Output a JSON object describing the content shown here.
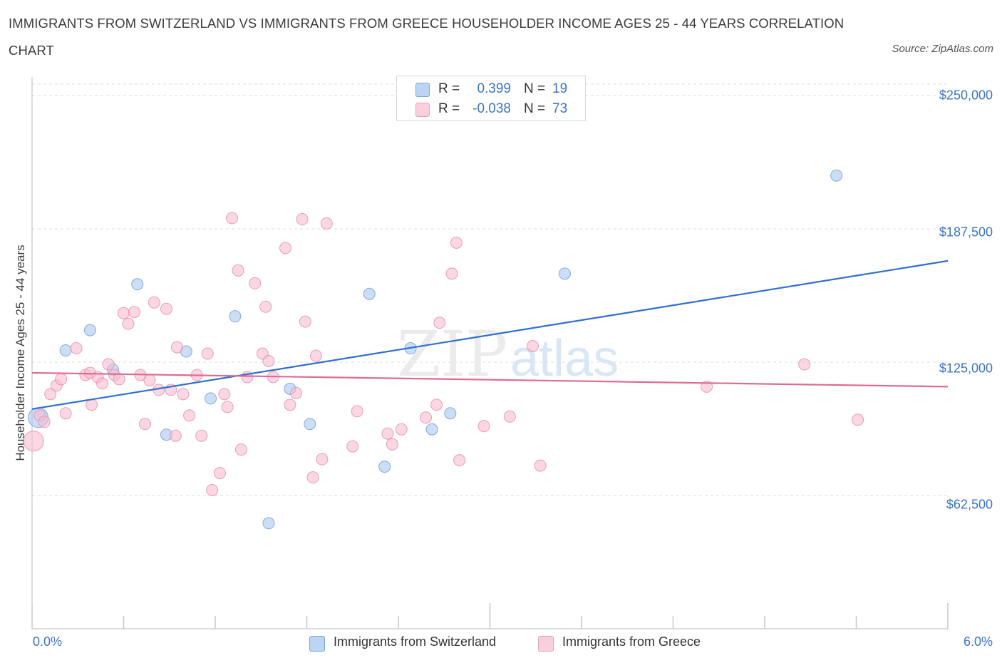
{
  "title": "IMMIGRANTS FROM SWITZERLAND VS IMMIGRANTS FROM GREECE HOUSEHOLDER INCOME AGES 25 - 44 YEARS CORRELATION CHART",
  "source": "Source: ZipAtlas.com",
  "watermark": "ZIPatlas",
  "legend": {
    "r_label": "R =",
    "n_label": "N =",
    "rows": [
      {
        "r": "0.399",
        "n": "19",
        "color": "#a9c8f0"
      },
      {
        "r": "-0.038",
        "n": "73",
        "color": "#f6bcd0"
      }
    ]
  },
  "chart_data": {
    "type": "scatter",
    "title": "IMMIGRANTS FROM SWITZERLAND VS IMMIGRANTS FROM GREECE HOUSEHOLDER INCOME AGES 25 - 44 YEARS CORRELATION CHART",
    "xlabel": "",
    "ylabel": "Householder Income Ages 25 - 44 years",
    "xlim": [
      0,
      6
    ],
    "ylim": [
      0,
      250000
    ],
    "x_tick_labels": [
      "0.0%",
      "6.0%"
    ],
    "y_ticks": [
      62500,
      125000,
      187500,
      250000
    ],
    "y_tick_labels": [
      "$62,500",
      "$125,000",
      "$187,500",
      "$250,000"
    ],
    "grid": true,
    "legend_position": "bottom-center",
    "series": [
      {
        "name": "Immigrants from Switzerland",
        "color": "#a9c8f0",
        "stroke": "#6a9ad6",
        "trend_color": "#2f6fcf",
        "trend": {
          "x0": 0,
          "y0": 103000,
          "x1": 6,
          "y1": 172500
        },
        "points": [
          [
            0.04,
            99000
          ],
          [
            0.22,
            130500
          ],
          [
            0.38,
            140000
          ],
          [
            0.53,
            121500
          ],
          [
            0.69,
            161500
          ],
          [
            0.88,
            91000
          ],
          [
            1.01,
            130000
          ],
          [
            1.17,
            108000
          ],
          [
            1.33,
            146500
          ],
          [
            1.55,
            49500
          ],
          [
            1.69,
            112500
          ],
          [
            1.82,
            96000
          ],
          [
            2.21,
            157000
          ],
          [
            2.31,
            76000
          ],
          [
            2.48,
            131500
          ],
          [
            2.62,
            93500
          ],
          [
            2.74,
            101000
          ],
          [
            3.49,
            166500
          ],
          [
            5.27,
            212500
          ]
        ]
      },
      {
        "name": "Immigrants from Greece",
        "color": "#f6bcd0",
        "stroke": "#e58aa8",
        "trend_color": "#e06a93",
        "trend": {
          "x0": 0,
          "y0": 120000,
          "x1": 6,
          "y1": 113500
        },
        "points": [
          [
            0.01,
            88000
          ],
          [
            0.12,
            110000
          ],
          [
            0.16,
            114000
          ],
          [
            0.19,
            117000
          ],
          [
            0.22,
            101000
          ],
          [
            0.29,
            131500
          ],
          [
            0.35,
            119000
          ],
          [
            0.38,
            120000
          ],
          [
            0.39,
            105000
          ],
          [
            0.43,
            118000
          ],
          [
            0.46,
            115000
          ],
          [
            0.5,
            124000
          ],
          [
            0.54,
            119000
          ],
          [
            0.57,
            117000
          ],
          [
            0.6,
            148000
          ],
          [
            0.63,
            143000
          ],
          [
            0.67,
            148500
          ],
          [
            0.71,
            119000
          ],
          [
            0.74,
            96000
          ],
          [
            0.77,
            116500
          ],
          [
            0.8,
            153000
          ],
          [
            0.83,
            112000
          ],
          [
            0.88,
            150000
          ],
          [
            0.91,
            112000
          ],
          [
            0.94,
            90500
          ],
          [
            0.95,
            132000
          ],
          [
            0.99,
            110000
          ],
          [
            1.03,
            100000
          ],
          [
            1.08,
            119000
          ],
          [
            1.11,
            90500
          ],
          [
            1.15,
            129000
          ],
          [
            1.18,
            65000
          ],
          [
            1.23,
            73000
          ],
          [
            1.26,
            110000
          ],
          [
            1.28,
            104000
          ],
          [
            1.31,
            192500
          ],
          [
            1.35,
            168000
          ],
          [
            1.37,
            84000
          ],
          [
            1.41,
            118000
          ],
          [
            1.46,
            162000
          ],
          [
            1.51,
            129000
          ],
          [
            1.53,
            151000
          ],
          [
            1.55,
            125500
          ],
          [
            1.58,
            118000
          ],
          [
            1.66,
            178500
          ],
          [
            1.69,
            105000
          ],
          [
            1.73,
            110500
          ],
          [
            1.77,
            192000
          ],
          [
            1.79,
            144000
          ],
          [
            1.84,
            71000
          ],
          [
            1.86,
            128000
          ],
          [
            1.9,
            79500
          ],
          [
            1.93,
            190000
          ],
          [
            2.1,
            85500
          ],
          [
            2.13,
            102000
          ],
          [
            2.33,
            91500
          ],
          [
            2.36,
            86500
          ],
          [
            2.42,
            93500
          ],
          [
            2.58,
            99000
          ],
          [
            2.65,
            105000
          ],
          [
            2.67,
            143500
          ],
          [
            2.75,
            166500
          ],
          [
            2.78,
            181000
          ],
          [
            2.8,
            79000
          ],
          [
            2.96,
            95000
          ],
          [
            3.13,
            99500
          ],
          [
            3.28,
            132500
          ],
          [
            3.33,
            76500
          ],
          [
            4.42,
            113500
          ],
          [
            5.06,
            124000
          ],
          [
            5.41,
            98000
          ],
          [
            0.05,
            100000
          ],
          [
            0.08,
            97000
          ]
        ]
      }
    ]
  },
  "bottom_legend": [
    "Immigrants from Switzerland",
    "Immigrants from Greece"
  ]
}
